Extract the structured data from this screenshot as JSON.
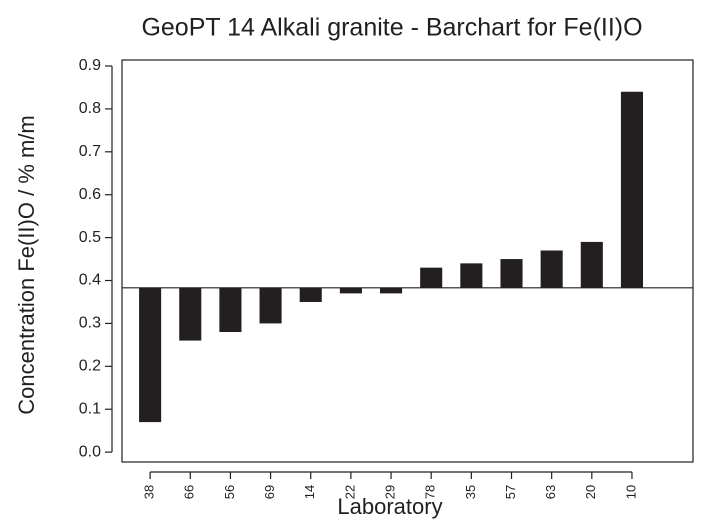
{
  "chart_data": {
    "type": "bar",
    "title": "GeoPT 14 Alkali granite - Barchart for Fe(II)O",
    "x_label": "Laboratory",
    "y_label": "Concentration Fe(II)O / % m/m",
    "categories": [
      "38",
      "66",
      "56",
      "69",
      "14",
      "22",
      "29",
      "78",
      "35",
      "57",
      "63",
      "20",
      "10"
    ],
    "values": [
      0.07,
      0.26,
      0.28,
      0.3,
      0.35,
      0.37,
      0.37,
      0.43,
      0.44,
      0.45,
      0.47,
      0.49,
      0.84
    ],
    "reference_line": 0.383,
    "color": "#231f20",
    "ylim": [
      -0.023,
      0.914
    ],
    "yticks": [
      {
        "value": 0,
        "label": "0.0"
      },
      0.1,
      0.2,
      0.3,
      0.4,
      0.5,
      0.6,
      0.7,
      0.8,
      0.9
    ]
  }
}
